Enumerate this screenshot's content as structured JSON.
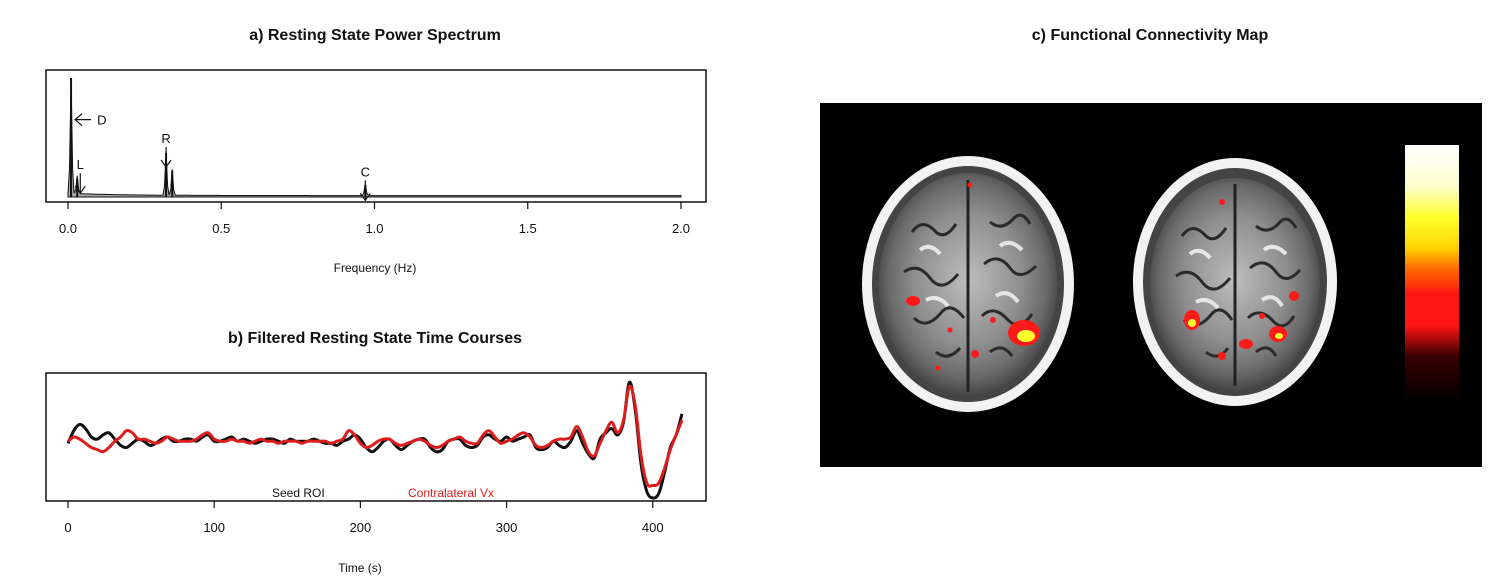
{
  "panels": {
    "a": {
      "title": "a) Resting State Power Spectrum"
    },
    "b": {
      "title": "b) Filtered Resting State Time Courses"
    },
    "c": {
      "title": "c) Functional Connectivity Map"
    }
  },
  "colors": {
    "seed": "#111111",
    "contralateral": "#dd1c1c",
    "spectrum_fill": "#a8a8a8",
    "map_background": "#000000"
  },
  "chart_data": [
    {
      "type": "area",
      "title": "a) Resting State Power Spectrum",
      "xlabel": "Frequency (Hz)",
      "ylabel": "",
      "xlim": [
        0,
        2.0
      ],
      "ylim": [
        0,
        1.0
      ],
      "x_ticks": [
        "0.0",
        "0.5",
        "1.0",
        "1.5",
        "2.0"
      ],
      "grid": false,
      "peaks": [
        {
          "x": 0.01,
          "y": 1.0
        },
        {
          "x": 0.03,
          "y": 0.15
        },
        {
          "x": 0.32,
          "y": 0.37
        },
        {
          "x": 0.34,
          "y": 0.22
        },
        {
          "x": 0.97,
          "y": 0.1
        }
      ],
      "annotations": [
        {
          "label": "D",
          "x": 0.01,
          "y": 0.65,
          "arrow": "left"
        },
        {
          "label": "L",
          "x": 0.04,
          "y": 0.2,
          "arrow": "down"
        },
        {
          "label": "R",
          "x": 0.32,
          "y": 0.42,
          "arrow": "down"
        },
        {
          "label": "C",
          "x": 0.97,
          "y": 0.14,
          "arrow": "down"
        }
      ]
    },
    {
      "type": "line",
      "title": "b) Filtered Resting State Time Courses",
      "xlabel": "Time (s)",
      "ylabel": "",
      "xlim": [
        0,
        420
      ],
      "ylim": [
        -1.3,
        1.6
      ],
      "x_ticks": [
        "0",
        "100",
        "200",
        "300",
        "400"
      ],
      "grid": false,
      "legend_position": "bottom-center",
      "series": [
        {
          "name": "Seed ROI",
          "color": "#111111",
          "x": [
            0,
            4,
            8,
            12,
            16,
            20,
            24,
            28,
            32,
            36,
            40,
            44,
            48,
            52,
            56,
            60,
            64,
            68,
            72,
            76,
            80,
            84,
            88,
            92,
            96,
            100,
            104,
            108,
            112,
            116,
            120,
            124,
            128,
            132,
            136,
            140,
            144,
            148,
            152,
            156,
            160,
            164,
            168,
            172,
            176,
            180,
            184,
            188,
            192,
            196,
            200,
            204,
            208,
            212,
            216,
            220,
            224,
            228,
            232,
            236,
            240,
            244,
            248,
            252,
            256,
            260,
            264,
            268,
            272,
            276,
            280,
            284,
            288,
            292,
            296,
            300,
            304,
            308,
            312,
            316,
            320,
            324,
            328,
            332,
            336,
            340,
            344,
            348,
            352,
            356,
            360,
            364,
            368,
            372,
            376,
            380,
            384,
            388,
            392,
            396,
            400,
            404,
            408,
            412,
            416,
            420
          ],
          "y": [
            0,
            0.3,
            0.45,
            0.35,
            0.15,
            0.1,
            0.2,
            0.25,
            0.1,
            -0.05,
            -0.1,
            0,
            0.1,
            0.05,
            -0.05,
            0,
            0.1,
            0.15,
            0.05,
            0.05,
            0.1,
            0.1,
            0.05,
            0.15,
            0.2,
            0.05,
            0.05,
            0.1,
            0.15,
            0.05,
            0.1,
            0.05,
            0,
            0.05,
            0.1,
            0.1,
            0.05,
            0,
            0.1,
            0.05,
            0.05,
            0.05,
            0.1,
            0.05,
            0,
            0,
            -0.05,
            0.05,
            0.1,
            0.2,
            0.1,
            -0.1,
            -0.2,
            -0.1,
            0.05,
            0.1,
            -0.05,
            -0.15,
            -0.05,
            0.05,
            0.1,
            0.1,
            -0.1,
            -0.2,
            -0.15,
            0.05,
            0.1,
            0.1,
            -0.05,
            -0.1,
            -0.05,
            0.15,
            0.2,
            0.1,
            0.05,
            0.15,
            0.05,
            0.1,
            0.15,
            0.2,
            -0.1,
            -0.15,
            -0.1,
            0.05,
            -0.05,
            -0.1,
            0.05,
            0.3,
            0,
            -0.25,
            -0.35,
            0.1,
            0.25,
            0.35,
            0.2,
            0.5,
            1.45,
            0.8,
            -0.5,
            -1.15,
            -1.3,
            -1.2,
            -0.7,
            -0.1,
            0.2,
            0.7
          ]
        },
        {
          "name": "Contralateral Vx",
          "color": "#dd1c1c",
          "x": [
            0,
            4,
            8,
            12,
            16,
            20,
            24,
            28,
            32,
            36,
            40,
            44,
            48,
            52,
            56,
            60,
            64,
            68,
            72,
            76,
            80,
            84,
            88,
            92,
            96,
            100,
            104,
            108,
            112,
            116,
            120,
            124,
            128,
            132,
            136,
            140,
            144,
            148,
            152,
            156,
            160,
            164,
            168,
            172,
            176,
            180,
            184,
            188,
            192,
            196,
            200,
            204,
            208,
            212,
            216,
            220,
            224,
            228,
            232,
            236,
            240,
            244,
            248,
            252,
            256,
            260,
            264,
            268,
            272,
            276,
            280,
            284,
            288,
            292,
            296,
            300,
            304,
            308,
            312,
            316,
            320,
            324,
            328,
            332,
            336,
            340,
            344,
            348,
            352,
            356,
            360,
            364,
            368,
            372,
            376,
            380,
            384,
            388,
            392,
            396,
            400,
            404,
            408,
            412,
            416,
            420
          ],
          "y": [
            0.05,
            0.15,
            0.1,
            0,
            -0.1,
            -0.15,
            -0.2,
            -0.1,
            0.05,
            0.15,
            0.3,
            0.25,
            0.1,
            0.1,
            0.05,
            0,
            0.05,
            0.15,
            0.1,
            0.05,
            0.05,
            0.05,
            0.1,
            0.2,
            0.25,
            0.1,
            0.05,
            0.05,
            0.1,
            0.05,
            0.05,
            0,
            0.05,
            0.1,
            0.05,
            0.05,
            0,
            0.05,
            0.05,
            0.05,
            0,
            0.05,
            0.05,
            0.05,
            0.05,
            0,
            0.05,
            0.1,
            0.3,
            0.2,
            0,
            -0.1,
            -0.05,
            0.05,
            0.1,
            0.1,
            0,
            -0.05,
            0,
            0.05,
            0.1,
            0.05,
            -0.05,
            -0.1,
            -0.05,
            0.05,
            0.1,
            0.15,
            0.05,
            0,
            0,
            0.2,
            0.3,
            0.15,
            0,
            0.05,
            0.1,
            0.2,
            0.25,
            0.15,
            -0.05,
            -0.1,
            -0.05,
            0.05,
            0.1,
            0.1,
            0.15,
            0.4,
            0.15,
            -0.2,
            -0.3,
            0,
            0.3,
            0.5,
            0.25,
            0.55,
            1.35,
            0.9,
            -0.3,
            -0.95,
            -1.0,
            -0.95,
            -0.6,
            -0.15,
            0.2,
            0.55
          ]
        }
      ]
    },
    {
      "type": "heatmap",
      "title": "c) Functional Connectivity Map",
      "xlabel": "",
      "ylabel": "",
      "colorbar": [
        "#000000",
        "#ff1a1a",
        "#ffff00",
        "#ffffff"
      ]
    }
  ]
}
